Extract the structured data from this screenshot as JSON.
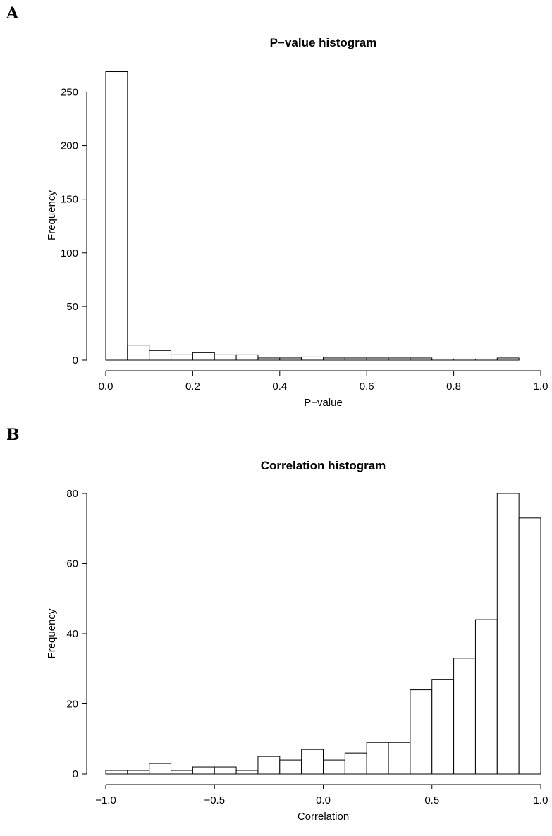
{
  "panels": [
    {
      "label": "A"
    },
    {
      "label": "B"
    }
  ],
  "chart_data": [
    {
      "type": "bar",
      "title": "P−value histogram",
      "xlabel": "P−value",
      "ylabel": "Frequency",
      "bin_edges": [
        0.0,
        0.05,
        0.1,
        0.15,
        0.2,
        0.25,
        0.3,
        0.35,
        0.4,
        0.45,
        0.5,
        0.55,
        0.6,
        0.65,
        0.7,
        0.75,
        0.8,
        0.85,
        0.9,
        0.95
      ],
      "values": [
        269,
        14,
        9,
        5,
        7,
        5,
        5,
        2,
        2,
        3,
        2,
        2,
        2,
        2,
        2,
        1,
        1,
        1,
        2
      ],
      "xlim": [
        0.0,
        1.0
      ],
      "ylim": [
        0,
        270
      ],
      "xticks": [
        0.0,
        0.2,
        0.4,
        0.6,
        0.8,
        1.0
      ],
      "xtick_labels": [
        "0.0",
        "0.2",
        "0.4",
        "0.6",
        "0.8",
        "1.0"
      ],
      "yticks": [
        0,
        50,
        100,
        150,
        200,
        250
      ],
      "ytick_labels": [
        "0",
        "50",
        "100",
        "150",
        "200",
        "250"
      ]
    },
    {
      "type": "bar",
      "title": "Correlation histogram",
      "xlabel": "Correlation",
      "ylabel": "Frequency",
      "bin_edges": [
        -1.0,
        -0.9,
        -0.8,
        -0.7,
        -0.6,
        -0.5,
        -0.4,
        -0.3,
        -0.2,
        -0.1,
        0.0,
        0.1,
        0.2,
        0.3,
        0.4,
        0.5,
        0.6,
        0.7,
        0.8,
        0.9,
        1.0
      ],
      "values": [
        1,
        1,
        3,
        1,
        2,
        2,
        1,
        5,
        4,
        7,
        4,
        6,
        9,
        9,
        24,
        27,
        33,
        44,
        80,
        73
      ],
      "xlim": [
        -1.0,
        1.0
      ],
      "ylim": [
        0,
        80
      ],
      "xticks": [
        -1.0,
        -0.5,
        0.0,
        0.5,
        1.0
      ],
      "xtick_labels": [
        "−1.0",
        "−0.5",
        "0.0",
        "0.5",
        "1.0"
      ],
      "yticks": [
        0,
        20,
        40,
        60,
        80
      ],
      "ytick_labels": [
        "0",
        "20",
        "40",
        "60",
        "80"
      ]
    }
  ]
}
